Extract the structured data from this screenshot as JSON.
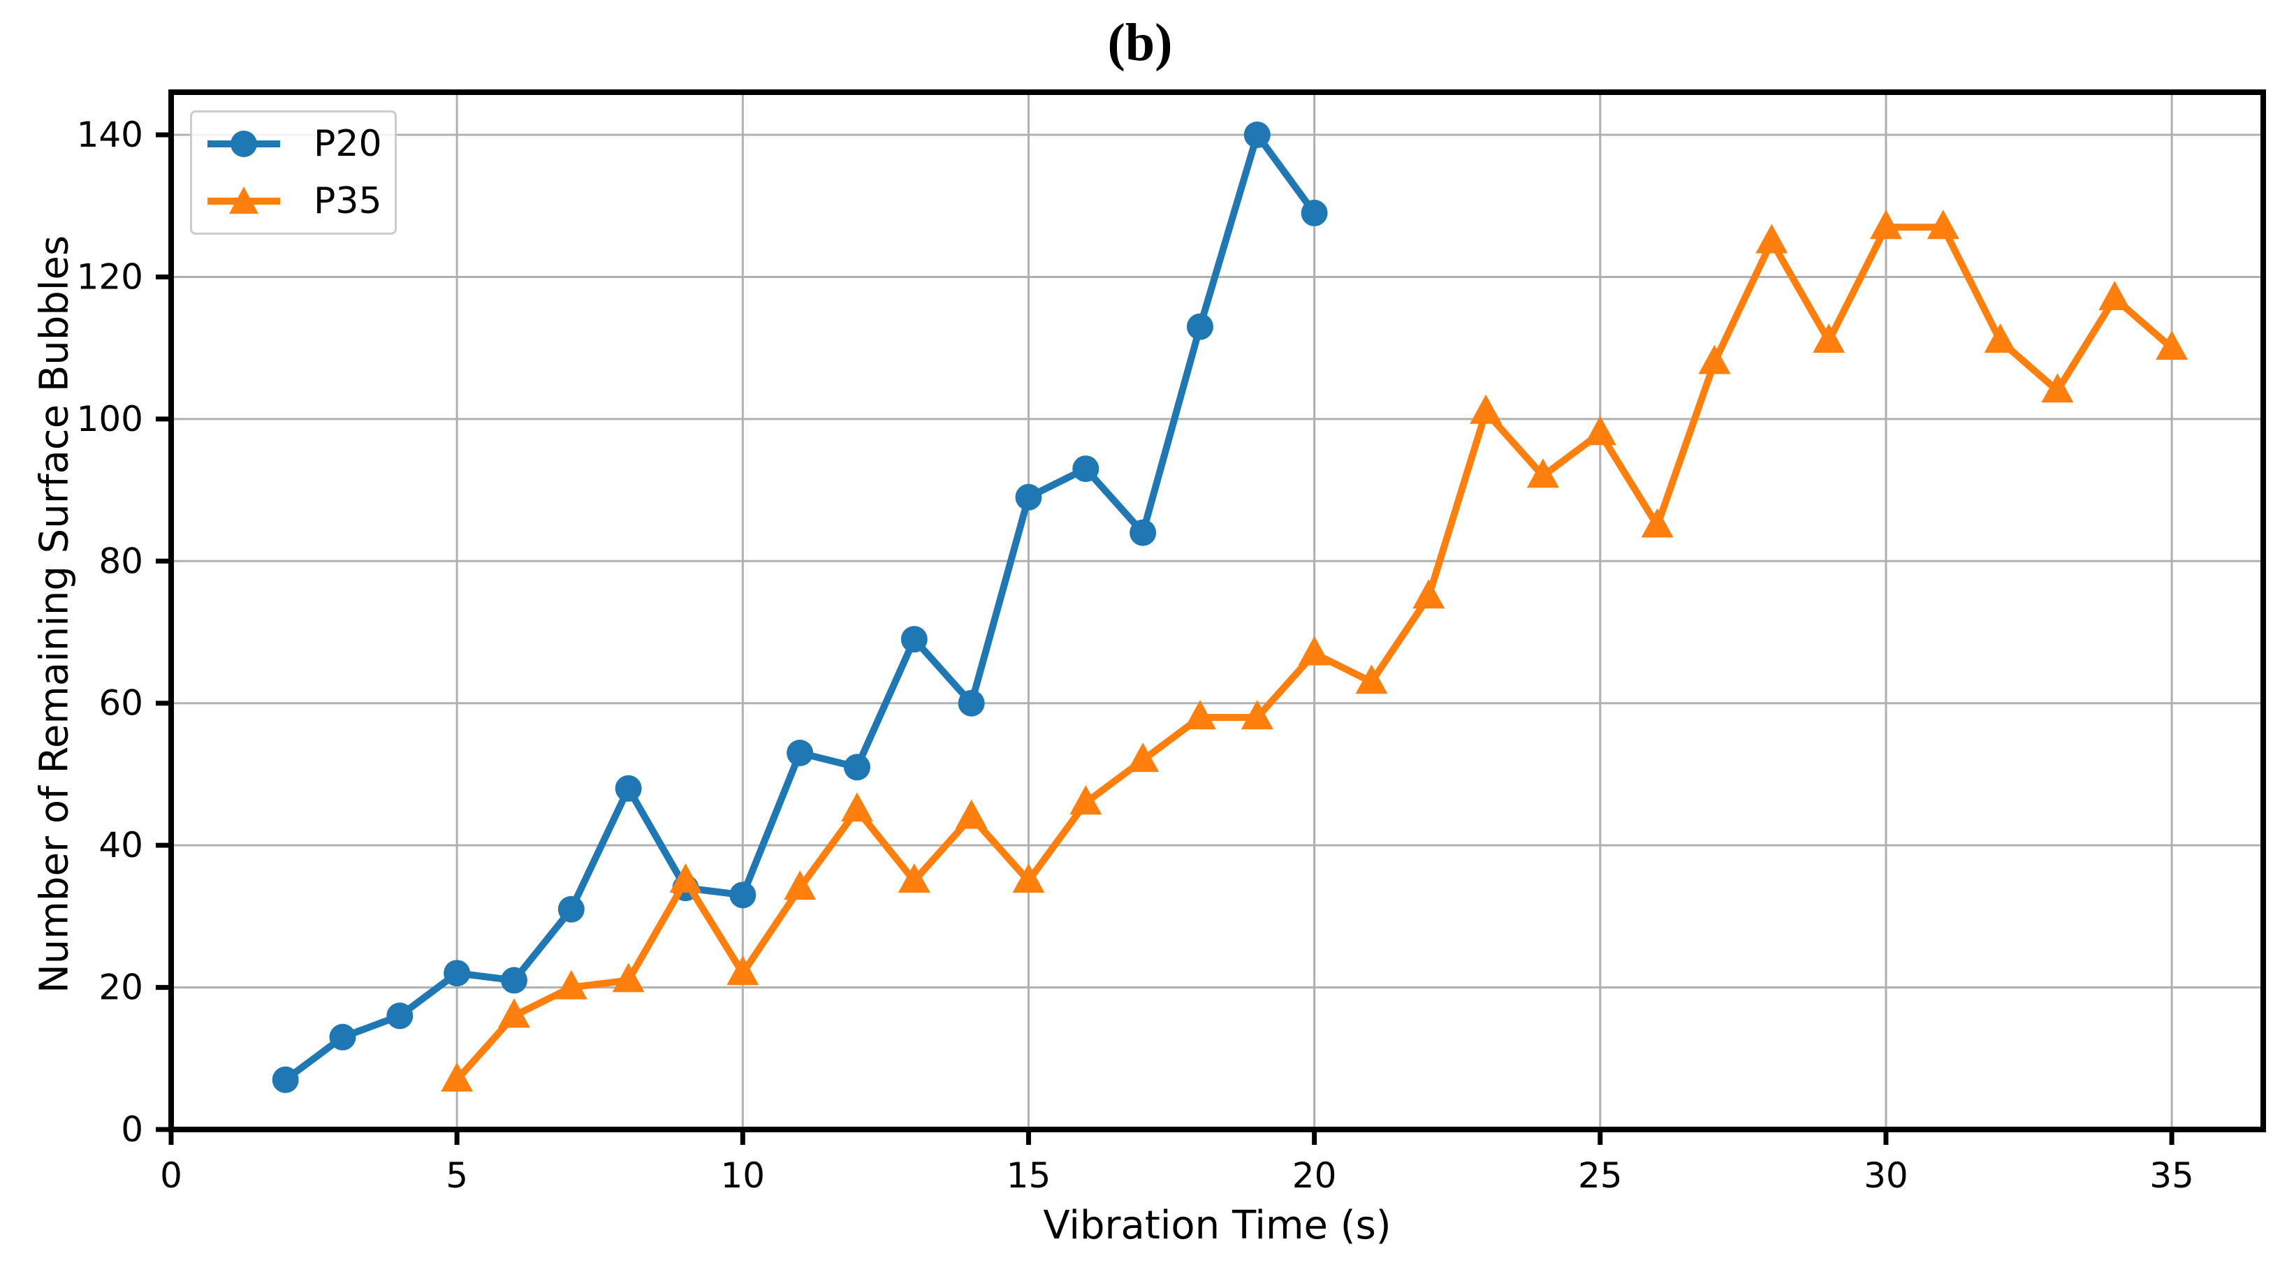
{
  "chart_data": {
    "type": "line",
    "title": "(b)",
    "xlabel": "Vibration Time (s)",
    "ylabel": "Number of Remaining Surface Bubbles",
    "xlim": [
      0,
      36.6
    ],
    "ylim": [
      0,
      146
    ],
    "xticks": [
      0,
      5,
      10,
      15,
      20,
      25,
      30,
      35
    ],
    "yticks": [
      0,
      20,
      40,
      60,
      80,
      100,
      120,
      140
    ],
    "grid": true,
    "legend_position": "upper-left",
    "colors": {
      "grid": "#b0b0b0",
      "axis": "#000000",
      "background": "#ffffff",
      "p20": "#1f77b4",
      "p35": "#ff7f0e"
    },
    "series": [
      {
        "name": "P20",
        "color": "#1f77b4",
        "marker": "circle",
        "x": [
          2,
          3,
          4,
          5,
          6,
          7,
          8,
          9,
          10,
          11,
          12,
          13,
          14,
          15,
          16,
          17,
          18,
          19,
          20
        ],
        "y": [
          7,
          13,
          16,
          22,
          21,
          31,
          48,
          34,
          33,
          53,
          51,
          69,
          60,
          89,
          93,
          84,
          113,
          140,
          129
        ]
      },
      {
        "name": "P35",
        "color": "#ff7f0e",
        "marker": "triangle-up",
        "x": [
          5,
          6,
          7,
          8,
          9,
          10,
          11,
          12,
          13,
          14,
          15,
          16,
          17,
          18,
          19,
          20,
          21,
          22,
          23,
          24,
          25,
          26,
          27,
          28,
          29,
          30,
          31,
          32,
          33,
          34,
          35
        ],
        "y": [
          7,
          16,
          20,
          21,
          35,
          22,
          34,
          45,
          35,
          44,
          35,
          46,
          52,
          58,
          58,
          67,
          63,
          75,
          101,
          92,
          98,
          85,
          108,
          125,
          111,
          127,
          127,
          111,
          104,
          117,
          110
        ]
      }
    ]
  }
}
